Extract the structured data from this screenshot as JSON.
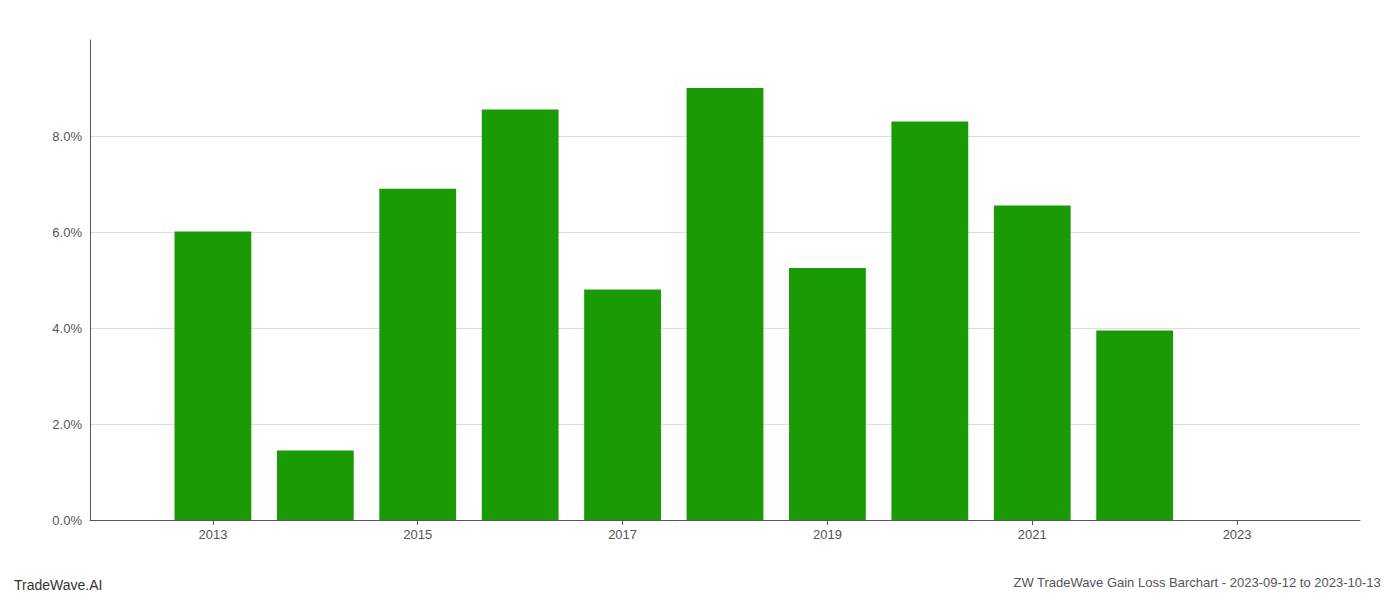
{
  "chart_data": {
    "type": "bar",
    "title": "ZW TradeWave Gain Loss Barchart - 2023-09-12 to 2023-10-13",
    "annotations": [
      "TradeWave.AI"
    ],
    "x": [
      2013,
      2014,
      2015,
      2016,
      2017,
      2018,
      2019,
      2020,
      2021,
      2022
    ],
    "values": [
      0.0601,
      0.0145,
      0.069,
      0.0855,
      0.048,
      0.09,
      0.0525,
      0.083,
      0.0655,
      0.0395
    ],
    "color": "#1a9b06",
    "xlim": [
      2011.8,
      2024.2
    ],
    "xticks": [
      2013,
      2015,
      2017,
      2019,
      2021,
      2023
    ],
    "ylim": [
      0,
      0.1
    ],
    "yticks": [
      {
        "value": 0.0,
        "label": "0.0%"
      },
      {
        "value": 0.02,
        "label": "2.0%"
      },
      {
        "value": 0.04,
        "label": "4.0%"
      },
      {
        "value": 0.06,
        "label": "6.0%"
      },
      {
        "value": 0.08,
        "label": "8.0%"
      }
    ],
    "grid": true
  }
}
